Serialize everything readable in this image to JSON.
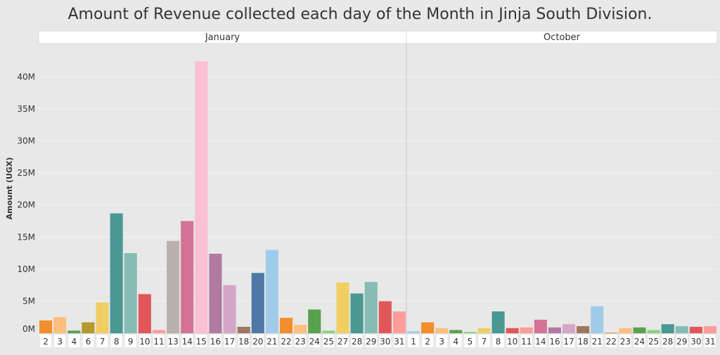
{
  "chart_data": {
    "type": "bar",
    "title": "Amount of Revenue collected each day of the Month in Jinja South Division.",
    "ylabel": "Amount (UGX)",
    "xlabel": "",
    "ylim": [
      0,
      43000000
    ],
    "y_ticks": [
      {
        "value": 0,
        "label": "0M"
      },
      {
        "value": 5000000,
        "label": "5M"
      },
      {
        "value": 10000000,
        "label": "10M"
      },
      {
        "value": 15000000,
        "label": "15M"
      },
      {
        "value": 20000000,
        "label": "20M"
      },
      {
        "value": 25000000,
        "label": "25M"
      },
      {
        "value": 30000000,
        "label": "30M"
      },
      {
        "value": 35000000,
        "label": "35M"
      },
      {
        "value": 40000000,
        "label": "40M"
      }
    ],
    "grid": true,
    "legend": "none",
    "panels": [
      {
        "name": "January",
        "categories": [
          "2",
          "3",
          "4",
          "6",
          "7",
          "8",
          "9",
          "10",
          "11",
          "13",
          "14",
          "15",
          "16",
          "17",
          "18",
          "20",
          "21",
          "22",
          "23",
          "24",
          "25",
          "27",
          "28",
          "29",
          "30",
          "31"
        ],
        "values": [
          2000000,
          2500000,
          400000,
          1700000,
          4800000,
          18700000,
          12500000,
          6100000,
          500000,
          14400000,
          17500000,
          42400000,
          12400000,
          7500000,
          1000000,
          9400000,
          13000000,
          2400000,
          1300000,
          3700000,
          400000,
          7900000,
          6200000,
          8000000,
          5000000,
          3400000
        ]
      },
      {
        "name": "October",
        "categories": [
          "1",
          "2",
          "3",
          "4",
          "5",
          "7",
          "8",
          "10",
          "11",
          "14",
          "16",
          "17",
          "18",
          "21",
          "22",
          "23",
          "24",
          "25",
          "28",
          "29",
          "30",
          "31"
        ],
        "values": [
          300000,
          1700000,
          800000,
          500000,
          200000,
          800000,
          3400000,
          800000,
          900000,
          2100000,
          900000,
          1400000,
          1100000,
          4200000,
          100000,
          800000,
          900000,
          500000,
          1400000,
          1100000,
          1000000,
          1100000
        ]
      }
    ],
    "day_colors": {
      "1": "#a0cbe8",
      "2": "#f28e2b",
      "3": "#ffbe7d",
      "4": "#59a14f",
      "5": "#8cd17d",
      "6": "#b6992d",
      "7": "#f1ce63",
      "8": "#499894",
      "9": "#86bcb6",
      "10": "#e15759",
      "11": "#ff9d9a",
      "13": "#bab0ac",
      "14": "#d37295",
      "15": "#fabfd2",
      "16": "#b07aa1",
      "17": "#d4a6c8",
      "18": "#9d7660",
      "20": "#4e79a7",
      "21": "#a0cbe8",
      "22": "#f28e2b",
      "23": "#ffbe7d",
      "24": "#59a14f",
      "25": "#8cd17d",
      "27": "#f1ce63",
      "28": "#499894",
      "29": "#86bcb6",
      "30": "#e15759",
      "31": "#ff9d9a"
    }
  }
}
